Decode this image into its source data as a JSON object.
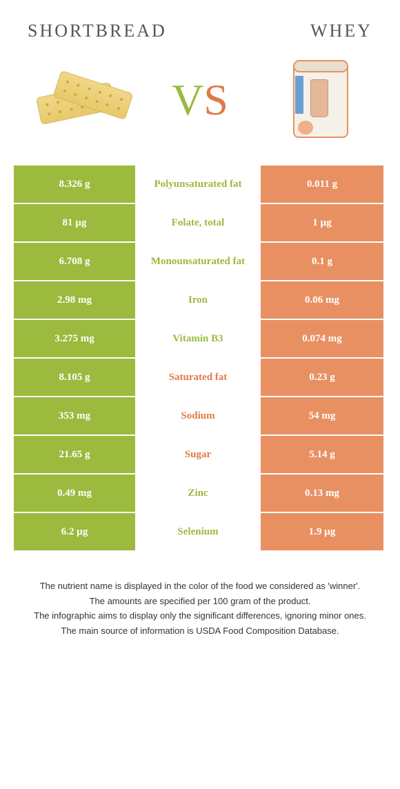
{
  "header": {
    "left_title": "SHORTBREAD",
    "right_title": "WHEY"
  },
  "vs": {
    "v": "V",
    "s": "S"
  },
  "colors": {
    "left": "#9bba3e",
    "right": "#e89062",
    "left_text": "#9bba3e",
    "right_text": "#e07a48"
  },
  "rows": [
    {
      "left": "8.326 g",
      "label": "Polyunsaturated fat",
      "right": "0.011 g",
      "winner": "left"
    },
    {
      "left": "81 µg",
      "label": "Folate, total",
      "right": "1 µg",
      "winner": "left"
    },
    {
      "left": "6.708 g",
      "label": "Monounsaturated fat",
      "right": "0.1 g",
      "winner": "left"
    },
    {
      "left": "2.98 mg",
      "label": "Iron",
      "right": "0.06 mg",
      "winner": "left"
    },
    {
      "left": "3.275 mg",
      "label": "Vitamin B3",
      "right": "0.074 mg",
      "winner": "left"
    },
    {
      "left": "8.105 g",
      "label": "Saturated fat",
      "right": "0.23 g",
      "winner": "right"
    },
    {
      "left": "353 mg",
      "label": "Sodium",
      "right": "54 mg",
      "winner": "right"
    },
    {
      "left": "21.65 g",
      "label": "Sugar",
      "right": "5.14 g",
      "winner": "right"
    },
    {
      "left": "0.49 mg",
      "label": "Zinc",
      "right": "0.13 mg",
      "winner": "left"
    },
    {
      "left": "6.2 µg",
      "label": "Selenium",
      "right": "1.9 µg",
      "winner": "left"
    }
  ],
  "footer": {
    "line1": "The nutrient name is displayed in the color of the food we considered as 'winner'.",
    "line2": "The amounts are specified per 100 gram of the product.",
    "line3": "The infographic aims to display only the significant differences, ignoring minor ones.",
    "line4": "The main source of information is USDA Food Composition Database."
  }
}
